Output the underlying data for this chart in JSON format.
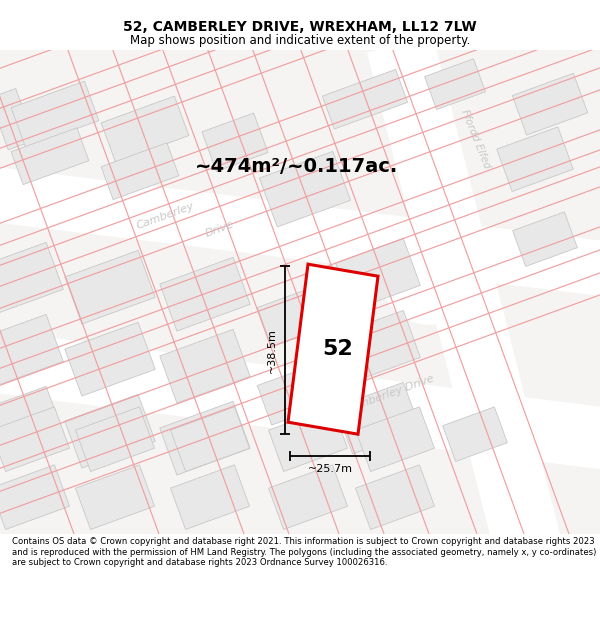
{
  "title": "52, CAMBERLEY DRIVE, WREXHAM, LL12 7LW",
  "subtitle": "Map shows position and indicative extent of the property.",
  "area_label": "~474m²/~0.117ac.",
  "dimension_height": "~38.5m",
  "dimension_width": "~25.7m",
  "property_number": "52",
  "footer": "Contains OS data © Crown copyright and database right 2021. This information is subject to Crown copyright and database rights 2023 and is reproduced with the permission of HM Land Registry. The polygons (including the associated geometry, namely x, y co-ordinates) are subject to Crown copyright and database rights 2023 Ordnance Survey 100026316.",
  "bg_color": "#ffffff",
  "map_bg": "#f5f4f2",
  "road_bg": "#ffffff",
  "building_fill": "#e8e8e8",
  "building_edge": "#c8c8c8",
  "plot_line": "#f0a0a0",
  "road_label_color": "#c8c8c8",
  "property_fill": "#ffffff",
  "property_stroke": "#dd0000",
  "title_color": "#000000",
  "footer_color": "#000000"
}
